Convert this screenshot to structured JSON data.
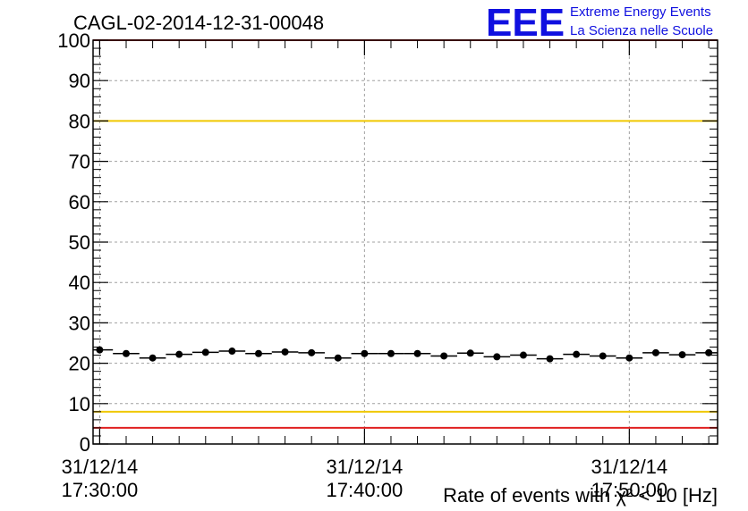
{
  "title": "CAGL-02-2014-12-31-00048",
  "logo": {
    "mark": "EEE",
    "line1": "Extreme Energy Events",
    "line2": "La Scienza nelle Scuole",
    "color": "#1010e0"
  },
  "x_axis": {
    "tick_labels": [
      {
        "date": "31/12/14",
        "time": "17:30:00"
      },
      {
        "date": "31/12/14",
        "time": "17:40:00"
      },
      {
        "date": "31/12/14",
        "time": "17:50:00"
      }
    ]
  },
  "y_axis": {
    "tick_labels": [
      "0",
      "10",
      "20",
      "30",
      "40",
      "50",
      "60",
      "70",
      "80",
      "90",
      "100"
    ]
  },
  "xlabel": "Rate of events with χ² < 10 [Hz]",
  "colors": {
    "upper_limit_line": "#e02020",
    "warning_line": "#f0c800",
    "points": "#000000",
    "grid": "#a0a0a0"
  },
  "chart_data": {
    "type": "scatter",
    "title": "CAGL-02-2014-12-31-00048",
    "xlabel": "Rate of events with χ² < 10 [Hz]",
    "ylabel": "",
    "x_unit": "minutes",
    "xlim": [
      "17:29:45",
      "17:53:20"
    ],
    "ylim": [
      0,
      100
    ],
    "grid": true,
    "reference_lines": [
      {
        "y": 100,
        "color": "red"
      },
      {
        "y": 80,
        "color": "yellow"
      },
      {
        "y": 8,
        "color": "yellow"
      },
      {
        "y": 4,
        "color": "red"
      }
    ],
    "series": [
      {
        "x": [
          "17:30:00",
          "17:31:00",
          "17:32:00",
          "17:33:00",
          "17:34:00",
          "17:35:00",
          "17:36:00",
          "17:37:00",
          "17:38:00",
          "17:39:00",
          "17:40:00",
          "17:41:00",
          "17:42:00",
          "17:43:00",
          "17:44:00",
          "17:45:00",
          "17:46:00",
          "17:47:00",
          "17:48:00",
          "17:49:00",
          "17:50:00",
          "17:51:00",
          "17:52:00",
          "17:53:00"
        ],
        "values": [
          23.3,
          22.4,
          21.3,
          22.2,
          22.7,
          23.0,
          22.4,
          22.8,
          22.6,
          21.3,
          22.4,
          22.4,
          22.4,
          21.8,
          22.5,
          21.6,
          22.0,
          21.1,
          22.2,
          21.8,
          21.3,
          22.6,
          22.1,
          22.6
        ]
      }
    ]
  }
}
